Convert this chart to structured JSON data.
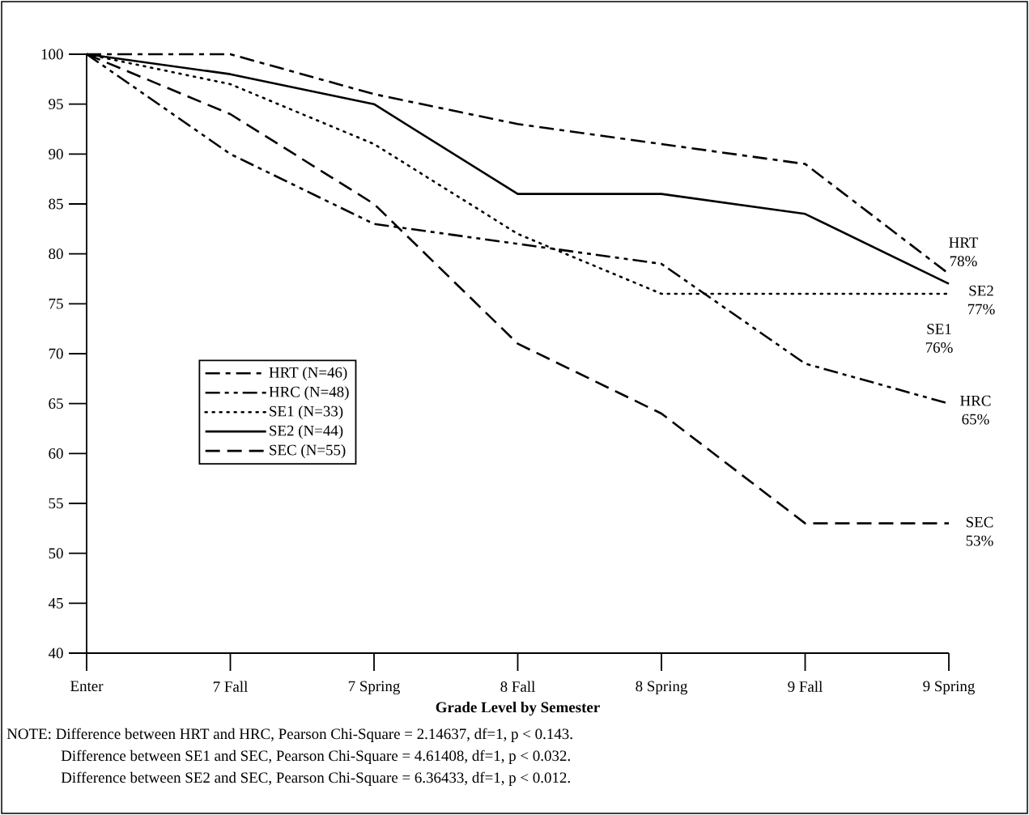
{
  "chart_data": {
    "type": "line",
    "xlabel": "Grade Level by Semester",
    "categories": [
      "Enter",
      "7 Fall",
      "7 Spring",
      "8 Fall",
      "8 Spring",
      "9 Fall",
      "9 Spring"
    ],
    "series": [
      {
        "name": "HRT (N=46)",
        "color": "#000000",
        "line_style": "dashdot",
        "values": [
          100,
          100,
          96,
          93,
          91,
          89,
          78
        ]
      },
      {
        "name": "HRC (N=48)",
        "color": "#000000",
        "line_style": "dashdotdot",
        "values": [
          100,
          90,
          83,
          81,
          79,
          69,
          65
        ]
      },
      {
        "name": "SE1 (N=33)",
        "color": "#000000",
        "line_style": "dotted",
        "values": [
          100,
          97,
          91,
          82,
          76,
          76,
          76
        ]
      },
      {
        "name": "SE2 (N=44)",
        "color": "#000000",
        "line_style": "solid",
        "values": [
          100,
          98,
          95,
          86,
          86,
          84,
          77
        ]
      },
      {
        "name": "SEC (N=55)",
        "color": "#000000",
        "line_style": "dashed",
        "values": [
          100,
          94,
          85,
          71,
          64,
          53,
          53
        ]
      }
    ],
    "ylim": [
      40,
      100
    ],
    "yticks": [
      40,
      45,
      50,
      55,
      60,
      65,
      70,
      75,
      80,
      85,
      90,
      95,
      100
    ],
    "legend": "left",
    "annotations": [
      {
        "text": "HRT 78%",
        "x": "9 Spring",
        "y": 78
      },
      {
        "text": "SE2 77%",
        "x": "9 Spring",
        "y": 77
      },
      {
        "text": "SE1 76%",
        "x": "9 Spring",
        "y": 76
      },
      {
        "text": "HRC 65%",
        "x": "9 Spring",
        "y": 65
      },
      {
        "text": "SEC 53%",
        "x": "9 Spring",
        "y": 53
      },
      "NOTE: Difference between HRT and HRC, Pearson Chi-Square = 2.14637, df=1, p < 0.143.",
      "Difference between SE1 and SEC, Pearson Chi-Square = 4.61408, df=1, p < 0.032.",
      "Difference between SE2 and SEC, Pearson Chi-Square = 6.36433, df=1, p < 0.012."
    ]
  }
}
